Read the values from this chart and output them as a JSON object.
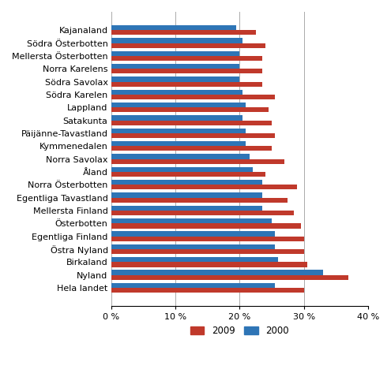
{
  "categories": [
    "Kajanaland",
    "Södra Österbotten",
    "Mellersta Österbotten",
    "Norra Karelens",
    "Södra Savolax",
    "Södra Karelen",
    "Lappland",
    "Satakunta",
    "Päijänne-Tavastland",
    "Kymmenedalen",
    "Norra Savolax",
    "Åland",
    "Norra Österbotten",
    "Egentliga Tavastland",
    "Mellersta Finland",
    "Österbotten",
    "Egentliga Finland",
    "Östra Nyland",
    "Birkaland",
    "Nyland",
    "Hela landet"
  ],
  "values_2009": [
    22.5,
    24.0,
    23.5,
    23.5,
    23.5,
    25.5,
    24.5,
    25.0,
    25.5,
    25.0,
    27.0,
    24.0,
    29.0,
    27.5,
    28.5,
    29.5,
    30.0,
    30.0,
    30.5,
    37.0,
    30.0
  ],
  "values_2000": [
    19.5,
    20.5,
    20.0,
    20.0,
    20.0,
    20.5,
    21.0,
    20.5,
    21.0,
    21.0,
    21.5,
    22.0,
    23.5,
    23.5,
    23.5,
    25.0,
    25.5,
    25.5,
    26.0,
    33.0,
    25.5
  ],
  "color_2009": "#c0392b",
  "color_2000": "#2e75b6",
  "xlim": [
    0,
    40
  ],
  "xticks": [
    0,
    10,
    20,
    30,
    40
  ],
  "xtick_labels": [
    "0 %",
    "10 %",
    "20 %",
    "30 %",
    "40 %"
  ],
  "legend_2009": "2009",
  "legend_2000": "2000",
  "bar_height": 0.38,
  "gridline_color": "#aaaaaa",
  "background_color": "#ffffff",
  "font_size": 8.0
}
